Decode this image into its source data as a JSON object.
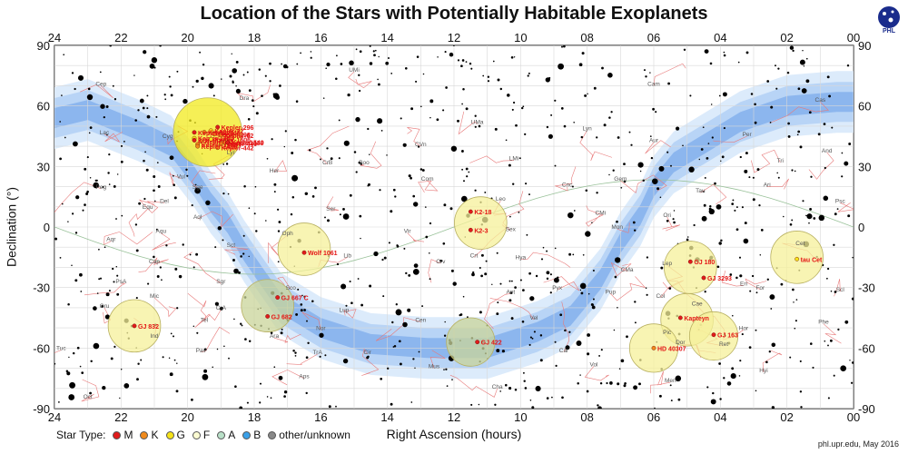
{
  "header": {
    "title": "Location of the Stars with Potentially Habitable Exoplanets",
    "logo_text": "PHL"
  },
  "footer": {
    "source": "phl.upr.edu, May 2016"
  },
  "legend": {
    "label": "Star Type:",
    "items": [
      {
        "name": "M",
        "color": "#e01b1b"
      },
      {
        "name": "K",
        "color": "#f08a1c"
      },
      {
        "name": "G",
        "color": "#f5e21a"
      },
      {
        "name": "F",
        "color": "#fbfbd2"
      },
      {
        "name": "A",
        "color": "#b9e0c8"
      },
      {
        "name": "B",
        "color": "#3aa0e8"
      },
      {
        "name": "other/unknown",
        "color": "#888888"
      }
    ]
  },
  "chart_data": {
    "type": "scatter",
    "title": "Location of the Stars with Potentially Habitable Exoplanets",
    "xlabel": "Right Ascension (hours)",
    "ylabel": "Declination (°)",
    "xlim": [
      24,
      0
    ],
    "ylim": [
      -90,
      90
    ],
    "x_ticks": [
      "24",
      "22",
      "20",
      "18",
      "16",
      "14",
      "12",
      "10",
      "08",
      "06",
      "04",
      "02",
      "00"
    ],
    "y_ticks": [
      "90",
      "60",
      "30",
      "0",
      "-30",
      "-60",
      "-90"
    ],
    "grid": true,
    "milky_way_band": true,
    "highlight_circles": [
      {
        "ra": 19.4,
        "dec": 47,
        "radius_deg": 17,
        "fill": "#f2ea1d"
      },
      {
        "ra": 11.2,
        "dec": 2,
        "radius_deg": 13,
        "fill": "#f6f09a"
      },
      {
        "ra": 16.5,
        "dec": -11,
        "radius_deg": 13,
        "fill": "#f6f09a"
      },
      {
        "ra": 17.6,
        "dec": -39,
        "radius_deg": 13,
        "fill": "#c9d49a"
      },
      {
        "ra": 21.6,
        "dec": -49,
        "radius_deg": 13,
        "fill": "#f6f09a"
      },
      {
        "ra": 11.5,
        "dec": -57,
        "radius_deg": 12,
        "fill": "#c9d49a"
      },
      {
        "ra": 4.9,
        "dec": -20,
        "radius_deg": 13,
        "fill": "#f6f09a"
      },
      {
        "ra": 5.0,
        "dec": -46,
        "radius_deg": 13,
        "fill": "#f6f09a"
      },
      {
        "ra": 4.2,
        "dec": -54,
        "radius_deg": 12,
        "fill": "#f6f09a"
      },
      {
        "ra": 6.0,
        "dec": -60,
        "radius_deg": 12,
        "fill": "#f6f09a"
      },
      {
        "ra": 1.7,
        "dec": -15,
        "radius_deg": 13,
        "fill": "#f6f09a"
      }
    ],
    "highlighted_stars": [
      {
        "name": "Kepler-22",
        "ra": 19.3,
        "dec": 47.8,
        "type": "G"
      },
      {
        "name": "Kepler-296",
        "ra": 19.1,
        "dec": 49.5,
        "type": "M"
      },
      {
        "name": "Kepler-443",
        "ra": 19.5,
        "dec": 47.0,
        "type": "K"
      },
      {
        "name": "Kepler-298",
        "ra": 19.2,
        "dec": 46.0,
        "type": "K"
      },
      {
        "name": "Kepler-1544",
        "ra": 19.8,
        "dec": 44.0,
        "type": "G"
      },
      {
        "name": "Kepler-62",
        "ra": 19.0,
        "dec": 45.5,
        "type": "K"
      },
      {
        "name": "Kepler-61",
        "ra": 19.6,
        "dec": 42.5,
        "type": "K"
      },
      {
        "name": "Kepler-1606",
        "ra": 19.3,
        "dec": 43.5,
        "type": "G"
      },
      {
        "name": "Kepler-1552",
        "ra": 19.7,
        "dec": 41.0,
        "type": "K"
      },
      {
        "name": "Kepler-1540",
        "ra": 18.9,
        "dec": 42.0,
        "type": "K"
      },
      {
        "name": "Kepler-440",
        "ra": 19.0,
        "dec": 41.5,
        "type": "K"
      },
      {
        "name": "Kepler-442",
        "ra": 19.1,
        "dec": 39.3,
        "type": "K"
      },
      {
        "name": "Kepler-438",
        "ra": 18.8,
        "dec": 41.9,
        "type": "M"
      },
      {
        "name": "Kepler-1229",
        "ra": 19.8,
        "dec": 46.9,
        "type": "M"
      },
      {
        "name": "Kepler-1410",
        "ra": 19.7,
        "dec": 40.0,
        "type": "K"
      },
      {
        "name": "KOI-4427",
        "ra": 19.8,
        "dec": 43.0,
        "type": "M"
      },
      {
        "name": "K2-18",
        "ra": 11.5,
        "dec": 7.6,
        "type": "M"
      },
      {
        "name": "K2-3",
        "ra": 11.5,
        "dec": -1.5,
        "type": "M"
      },
      {
        "name": "Wolf 1061",
        "ra": 16.5,
        "dec": -12.7,
        "type": "M"
      },
      {
        "name": "GJ 667 C",
        "ra": 17.3,
        "dec": -34.9,
        "type": "M"
      },
      {
        "name": "GJ 682",
        "ra": 17.6,
        "dec": -44.3,
        "type": "M"
      },
      {
        "name": "GJ 832",
        "ra": 21.6,
        "dec": -49.0,
        "type": "M"
      },
      {
        "name": "GJ 422",
        "ra": 11.3,
        "dec": -57.0,
        "type": "M"
      },
      {
        "name": "GJ 180",
        "ra": 4.9,
        "dec": -17.2,
        "type": "M"
      },
      {
        "name": "GJ 3293",
        "ra": 4.5,
        "dec": -25.2,
        "type": "M"
      },
      {
        "name": "Kapteyn",
        "ra": 5.2,
        "dec": -45.0,
        "type": "M"
      },
      {
        "name": "GJ 163",
        "ra": 4.2,
        "dec": -53.4,
        "type": "M"
      },
      {
        "name": "HD 40307",
        "ra": 6.0,
        "dec": -60.0,
        "type": "K"
      },
      {
        "name": "tau Cet",
        "ra": 1.7,
        "dec": -15.9,
        "type": "G"
      }
    ],
    "constellation_labels": [
      {
        "name": "Cep",
        "ra": 22.6,
        "dec": 70
      },
      {
        "name": "Lac",
        "ra": 22.5,
        "dec": 46
      },
      {
        "name": "Peg",
        "ra": 22.6,
        "dec": 19
      },
      {
        "name": "Aqr",
        "ra": 22.3,
        "dec": -7
      },
      {
        "name": "Cap",
        "ra": 21.0,
        "dec": -18
      },
      {
        "name": "PsA",
        "ra": 22.0,
        "dec": -28
      },
      {
        "name": "Gru",
        "ra": 22.5,
        "dec": -40
      },
      {
        "name": "Ind",
        "ra": 21.0,
        "dec": -55
      },
      {
        "name": "Tuc",
        "ra": 23.8,
        "dec": -61
      },
      {
        "name": "Mic",
        "ra": 21.0,
        "dec": -35
      },
      {
        "name": "Tel",
        "ra": 19.5,
        "dec": -47
      },
      {
        "name": "Pav",
        "ra": 19.6,
        "dec": -62
      },
      {
        "name": "Oct",
        "ra": 23.0,
        "dec": -85
      },
      {
        "name": "Del",
        "ra": 20.7,
        "dec": 12
      },
      {
        "name": "Equ",
        "ra": 21.2,
        "dec": 9
      },
      {
        "name": "Aql",
        "ra": 19.7,
        "dec": 4
      },
      {
        "name": "Sge",
        "ra": 19.7,
        "dec": 19
      },
      {
        "name": "Sgr",
        "ra": 19.0,
        "dec": -28
      },
      {
        "name": "CrA",
        "ra": 19.0,
        "dec": -41
      },
      {
        "name": "Ara",
        "ra": 17.4,
        "dec": -55
      },
      {
        "name": "Lyr",
        "ra": 18.7,
        "dec": 36
      },
      {
        "name": "Dra",
        "ra": 18.3,
        "dec": 63
      },
      {
        "name": "Her",
        "ra": 17.4,
        "dec": 27
      },
      {
        "name": "Oph",
        "ra": 17.0,
        "dec": -4
      },
      {
        "name": "Sco",
        "ra": 16.9,
        "dec": -31
      },
      {
        "name": "Ser",
        "ra": 15.7,
        "dec": 8
      },
      {
        "name": "CrB",
        "ra": 15.8,
        "dec": 31
      },
      {
        "name": "Boo",
        "ra": 14.7,
        "dec": 31
      },
      {
        "name": "Lib",
        "ra": 15.2,
        "dec": -15
      },
      {
        "name": "Lup",
        "ra": 15.3,
        "dec": -42
      },
      {
        "name": "TrA",
        "ra": 16.1,
        "dec": -63
      },
      {
        "name": "Aps",
        "ra": 16.5,
        "dec": -75
      },
      {
        "name": "Nor",
        "ra": 16.0,
        "dec": -51
      },
      {
        "name": "Cir",
        "ra": 14.6,
        "dec": -63
      },
      {
        "name": "Cen",
        "ra": 13.0,
        "dec": -47
      },
      {
        "name": "Vir",
        "ra": 13.4,
        "dec": -3
      },
      {
        "name": "Com",
        "ra": 12.8,
        "dec": 23
      },
      {
        "name": "CVn",
        "ra": 13.0,
        "dec": 40
      },
      {
        "name": "UMa",
        "ra": 11.3,
        "dec": 51
      },
      {
        "name": "UMi",
        "ra": 15.0,
        "dec": 77
      },
      {
        "name": "Leo",
        "ra": 10.6,
        "dec": 13
      },
      {
        "name": "LMi",
        "ra": 10.2,
        "dec": 33
      },
      {
        "name": "Sex",
        "ra": 10.3,
        "dec": -2
      },
      {
        "name": "Crt",
        "ra": 11.4,
        "dec": -15
      },
      {
        "name": "Crv",
        "ra": 12.4,
        "dec": -18
      },
      {
        "name": "Hya",
        "ra": 10.0,
        "dec": -16
      },
      {
        "name": "Ant",
        "ra": 10.3,
        "dec": -33
      },
      {
        "name": "Vel",
        "ra": 9.6,
        "dec": -46
      },
      {
        "name": "Car",
        "ra": 8.7,
        "dec": -62
      },
      {
        "name": "Cha",
        "ra": 10.7,
        "dec": -80
      },
      {
        "name": "Mus",
        "ra": 12.6,
        "dec": -70
      },
      {
        "name": "Lyn",
        "ra": 8.0,
        "dec": 48
      },
      {
        "name": "Cnc",
        "ra": 8.6,
        "dec": 20
      },
      {
        "name": "CMi",
        "ra": 7.6,
        "dec": 6
      },
      {
        "name": "Mon",
        "ra": 7.1,
        "dec": -1
      },
      {
        "name": "Pyx",
        "ra": 8.9,
        "dec": -31
      },
      {
        "name": "Pup",
        "ra": 7.3,
        "dec": -33
      },
      {
        "name": "Vol",
        "ra": 7.8,
        "dec": -69
      },
      {
        "name": "Gem",
        "ra": 7.0,
        "dec": 23
      },
      {
        "name": "Cam",
        "ra": 6.0,
        "dec": 70
      },
      {
        "name": "Aur",
        "ra": 6.0,
        "dec": 42
      },
      {
        "name": "Ori",
        "ra": 5.6,
        "dec": 5
      },
      {
        "name": "Lep",
        "ra": 5.6,
        "dec": -19
      },
      {
        "name": "Col",
        "ra": 5.8,
        "dec": -35
      },
      {
        "name": "Pic",
        "ra": 5.6,
        "dec": -53
      },
      {
        "name": "Dor",
        "ra": 5.2,
        "dec": -58
      },
      {
        "name": "Men",
        "ra": 5.5,
        "dec": -77
      },
      {
        "name": "Cae",
        "ra": 4.7,
        "dec": -39
      },
      {
        "name": "Eri",
        "ra": 3.3,
        "dec": -29
      },
      {
        "name": "Hor",
        "ra": 3.3,
        "dec": -51
      },
      {
        "name": "Ret",
        "ra": 3.9,
        "dec": -59
      },
      {
        "name": "Hyi",
        "ra": 2.7,
        "dec": -72
      },
      {
        "name": "Tau",
        "ra": 4.6,
        "dec": 17
      },
      {
        "name": "Per",
        "ra": 3.2,
        "dec": 45
      },
      {
        "name": "Cas",
        "ra": 1.0,
        "dec": 62
      },
      {
        "name": "And",
        "ra": 0.8,
        "dec": 37
      },
      {
        "name": "Tri",
        "ra": 2.2,
        "dec": 32
      },
      {
        "name": "Ari",
        "ra": 2.6,
        "dec": 20
      },
      {
        "name": "Psc",
        "ra": 0.4,
        "dec": 12
      },
      {
        "name": "Cet",
        "ra": 1.6,
        "dec": -9
      },
      {
        "name": "For",
        "ra": 2.8,
        "dec": -31
      },
      {
        "name": "Scl",
        "ra": 0.4,
        "dec": -32
      },
      {
        "name": "Phe",
        "ra": 0.9,
        "dec": -48
      },
      {
        "name": "Vul",
        "ra": 20.2,
        "dec": 24
      },
      {
        "name": "Cyg",
        "ra": 20.6,
        "dec": 44
      },
      {
        "name": "Sct",
        "ra": 18.7,
        "dec": -10
      },
      {
        "name": "Aqu",
        "ra": 20.8,
        "dec": -3
      },
      {
        "name": "CMa",
        "ra": 6.8,
        "dec": -22
      }
    ]
  }
}
